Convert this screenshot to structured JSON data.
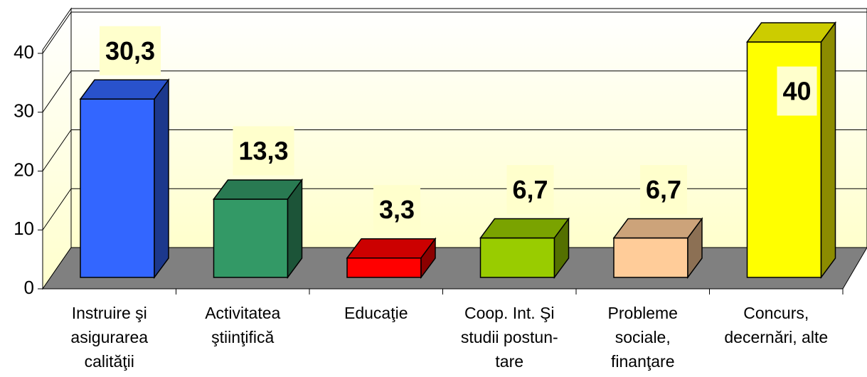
{
  "chart_data": {
    "type": "bar3d",
    "categories": [
      "Instruire şi\nasigurarea\ncalităţii",
      "Activitatea\nştiinţifică",
      "Educaţie",
      "Coop. Int. Şi\nstudii postun-\ntare",
      "Probleme\nsociale,\nfinanţare",
      "Concurs,\ndecernări, alte"
    ],
    "values": [
      30.3,
      13.3,
      3.3,
      6.7,
      6.7,
      40
    ],
    "value_labels": [
      "30,3",
      "13,3",
      "3,3",
      "6,7",
      "6,7",
      "40"
    ],
    "colors": [
      "#3366ff",
      "#339966",
      "#ff0000",
      "#99cc00",
      "#ffcc99",
      "#ffff00"
    ],
    "ylim": [
      0,
      40
    ],
    "yticks": [
      0,
      10,
      20,
      30,
      40
    ],
    "grid": true
  }
}
